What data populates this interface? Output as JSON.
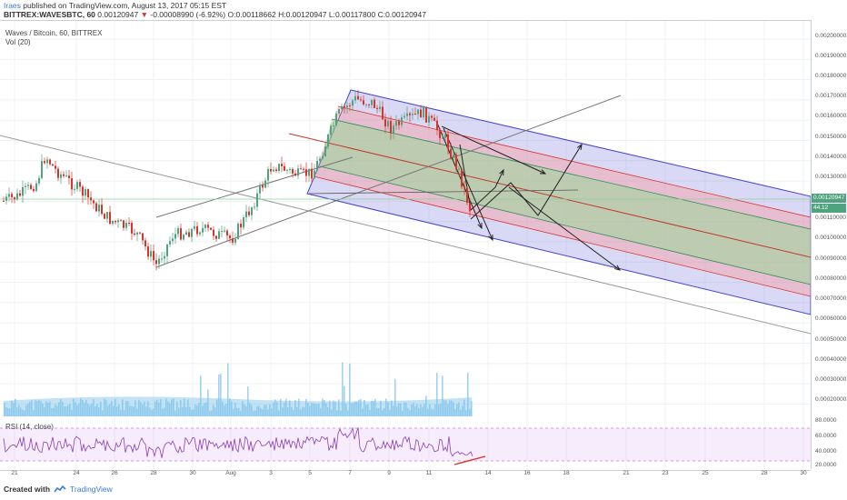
{
  "header": {
    "user": "Iraes",
    "published_text": "published on TradingView.com, August 13, 2017 05:15 EST",
    "symbol": "BITTREX:WAVESBTC, 60",
    "price": "0.00120947",
    "change_arrow": "▼",
    "change": "-0.00008990 (-6.92%)",
    "ohlc": "O:0.00118662 H:0.00120947 L:0.00117800 C:0.00120947"
  },
  "legend": {
    "title": "Waves / Bitcoin, 60, BITTREX",
    "volume": "Vol (20)",
    "rsi": "RSI (14, close)"
  },
  "price_axis": {
    "ticks": [
      "0.00200000",
      "0.00190000",
      "0.00180000",
      "0.00170000",
      "0.00160000",
      "0.00150000",
      "0.00140000",
      "0.00130000",
      "0.00110000",
      "0.00100000",
      "0.00090000",
      "0.00080000",
      "0.00070000",
      "0.00060000",
      "0.00050000",
      "0.00040000",
      "0.00030000",
      "0.00020000"
    ],
    "current_price_label": "0.00120947",
    "rsi_current_label": "44.12"
  },
  "rsi_axis": {
    "ticks": [
      "80.0000",
      "60.0000",
      "40.0000",
      "20.0000"
    ]
  },
  "time_axis": {
    "ticks": [
      "21",
      "24",
      "26",
      "28",
      "30",
      "Aug",
      "3",
      "5",
      "7",
      "9",
      "11",
      "14",
      "16",
      "18",
      "21",
      "23",
      "25",
      "28",
      "30"
    ]
  },
  "footer": {
    "created_with": "Created with",
    "brand": "TradingView"
  },
  "colors": {
    "up": "#4fa37f",
    "down": "#d9342b",
    "channel_outer": "#5c5cd6",
    "channel_mid": "#ff9999",
    "channel_inner": "#7fd07f",
    "rsi": "#8a3fb5",
    "volume": "#79c0e8"
  }
}
